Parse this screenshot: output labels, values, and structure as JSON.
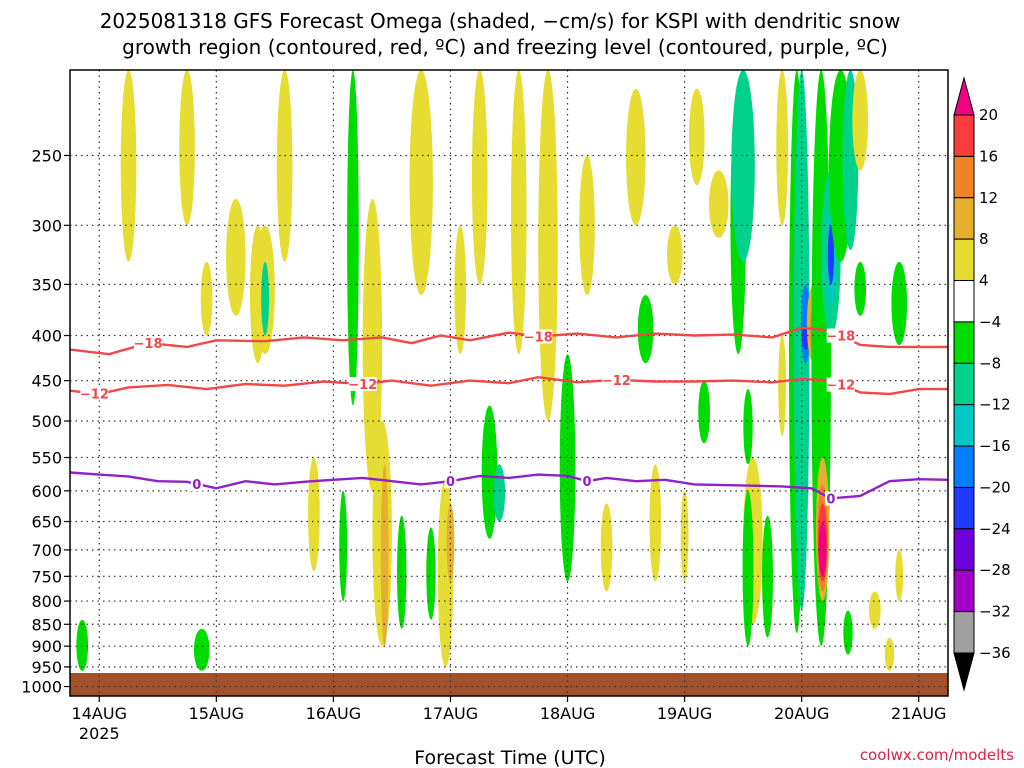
{
  "chart_data": {
    "type": "heatmap",
    "title_lines": [
      "2025081318 GFS Forecast Omega (shaded, −cm/s) for KSPI with dendritic snow",
      "growth region (contoured, red, ºC) and freezing level (contoured, purple, ºC)"
    ],
    "xlabel": "Forecast Time (UTC)",
    "credit": "coolwx.com/modelts",
    "y_axis": {
      "unit": "hPa",
      "scale": "log",
      "inverted": true,
      "range": [
        200,
        1025
      ],
      "ticks": [
        250,
        300,
        350,
        400,
        450,
        500,
        550,
        600,
        650,
        700,
        750,
        800,
        850,
        900,
        950,
        1000
      ]
    },
    "x_axis": {
      "range": [
        "2025-08-13T18:00Z",
        "2025-08-21T06:00Z"
      ],
      "ticks": [
        {
          "t": "2025-08-14T00:00Z",
          "label": "14AUG",
          "sublabel": "2025"
        },
        {
          "t": "2025-08-15T00:00Z",
          "label": "15AUG"
        },
        {
          "t": "2025-08-16T00:00Z",
          "label": "16AUG"
        },
        {
          "t": "2025-08-17T00:00Z",
          "label": "17AUG"
        },
        {
          "t": "2025-08-18T00:00Z",
          "label": "18AUG"
        },
        {
          "t": "2025-08-19T00:00Z",
          "label": "19AUG"
        },
        {
          "t": "2025-08-20T00:00Z",
          "label": "20AUG"
        },
        {
          "t": "2025-08-21T00:00Z",
          "label": "21AUG"
        }
      ]
    },
    "grid": true,
    "grid_style": "dotted",
    "colorbar": {
      "placement": "right",
      "bins": [
        {
          "lo": -40,
          "hi": -36,
          "color": "#000000",
          "end": "min"
        },
        {
          "lo": -36,
          "hi": -32,
          "color": "#a0a0a0"
        },
        {
          "lo": -32,
          "hi": -28,
          "color": "#a000c8"
        },
        {
          "lo": -28,
          "hi": -24,
          "color": "#6e00dc"
        },
        {
          "lo": -24,
          "hi": -20,
          "color": "#1e3cff"
        },
        {
          "lo": -20,
          "hi": -16,
          "color": "#0080ff"
        },
        {
          "lo": -16,
          "hi": -12,
          "color": "#00c8c8"
        },
        {
          "lo": -12,
          "hi": -8,
          "color": "#00d28c"
        },
        {
          "lo": -8,
          "hi": -4,
          "color": "#00dc00"
        },
        {
          "lo": -4,
          "hi": 4,
          "color": "#ffffff"
        },
        {
          "lo": 4,
          "hi": 8,
          "color": "#e6dc32"
        },
        {
          "lo": 8,
          "hi": 12,
          "color": "#e6af2d"
        },
        {
          "lo": 12,
          "hi": 16,
          "color": "#f08228"
        },
        {
          "lo": 16,
          "hi": 20,
          "color": "#fa3c3c"
        },
        {
          "lo": 20,
          "hi": 24,
          "color": "#f00082",
          "end": "max"
        }
      ],
      "tick_labels": [
        "20",
        "16",
        "12",
        "8",
        "4",
        "−4",
        "−8",
        "−12",
        "−16",
        "−20",
        "−24",
        "−28",
        "−32",
        "−36"
      ]
    },
    "omega_cells": [
      {
        "t": 12.0,
        "p0": 200,
        "p1": 330,
        "w": 2.0,
        "v": 6
      },
      {
        "t": 24.0,
        "p0": 200,
        "p1": 300,
        "w": 2.0,
        "v": 6
      },
      {
        "t": 28.0,
        "p0": 330,
        "p1": 400,
        "w": 1.5,
        "v": 6
      },
      {
        "t": 38.5,
        "p0": 300,
        "p1": 430,
        "w": 2.0,
        "v": 6
      },
      {
        "t": 40.0,
        "p0": 300,
        "p1": 420,
        "w": 2.5,
        "v": 6
      },
      {
        "t": 40.0,
        "p0": 330,
        "p1": 400,
        "w": 1.0,
        "v": -10
      },
      {
        "t": 44.0,
        "p0": 200,
        "p1": 330,
        "w": 2.0,
        "v": 6
      },
      {
        "t": 58.0,
        "p0": 200,
        "p1": 480,
        "w": 1.5,
        "v": -6
      },
      {
        "t": 62.0,
        "p0": 280,
        "p1": 600,
        "w": 2.5,
        "v": 6
      },
      {
        "t": 64.0,
        "p0": 500,
        "p1": 900,
        "w": 2.5,
        "v": 6
      },
      {
        "t": 64.5,
        "p0": 560,
        "p1": 900,
        "w": 1.0,
        "v": 10
      },
      {
        "t": 72.0,
        "p0": 200,
        "p1": 360,
        "w": 3.0,
        "v": 6
      },
      {
        "t": 77.0,
        "p0": 580,
        "p1": 950,
        "w": 2.0,
        "v": 6
      },
      {
        "t": 78.0,
        "p0": 620,
        "p1": 760,
        "w": 1.0,
        "v": 10
      },
      {
        "t": 80.0,
        "p0": 300,
        "p1": 420,
        "w": 1.5,
        "v": 6
      },
      {
        "t": 84.0,
        "p0": 200,
        "p1": 350,
        "w": 2.0,
        "v": 6
      },
      {
        "t": 86.0,
        "p0": 480,
        "p1": 680,
        "w": 2.0,
        "v": -6
      },
      {
        "t": 88.0,
        "p0": 560,
        "p1": 650,
        "w": 1.5,
        "v": -10
      },
      {
        "t": 92.0,
        "p0": 200,
        "p1": 420,
        "w": 2.0,
        "v": 6
      },
      {
        "t": 98.0,
        "p0": 200,
        "p1": 500,
        "w": 2.5,
        "v": 6
      },
      {
        "t": 102.0,
        "p0": 420,
        "p1": 760,
        "w": 2.0,
        "v": -6
      },
      {
        "t": 106.0,
        "p0": 250,
        "p1": 360,
        "w": 2.0,
        "v": 6
      },
      {
        "t": 116.0,
        "p0": 210,
        "p1": 300,
        "w": 2.5,
        "v": 6
      },
      {
        "t": 118.0,
        "p0": 360,
        "p1": 430,
        "w": 2.0,
        "v": -6
      },
      {
        "t": 124.0,
        "p0": 300,
        "p1": 350,
        "w": 2.0,
        "v": 6
      },
      {
        "t": 128.5,
        "p0": 210,
        "p1": 270,
        "w": 2.0,
        "v": 6
      },
      {
        "t": 130.0,
        "p0": 450,
        "p1": 530,
        "w": 1.5,
        "v": -6
      },
      {
        "t": 133.0,
        "p0": 260,
        "p1": 310,
        "w": 2.5,
        "v": 6
      },
      {
        "t": 137.0,
        "p0": 210,
        "p1": 420,
        "w": 2.0,
        "v": -6
      },
      {
        "t": 138.0,
        "p0": 200,
        "p1": 330,
        "w": 3.0,
        "v": -10
      },
      {
        "t": 140.0,
        "p0": 550,
        "p1": 850,
        "w": 2.5,
        "v": 6
      },
      {
        "t": 149.0,
        "p0": 200,
        "p1": 870,
        "w": 2.0,
        "v": -6
      },
      {
        "t": 150.0,
        "p0": 200,
        "p1": 820,
        "w": 2.0,
        "v": -10
      },
      {
        "t": 150.8,
        "p0": 350,
        "p1": 430,
        "w": 1.2,
        "v": -20
      },
      {
        "t": 150.8,
        "p0": 390,
        "p1": 415,
        "w": 1.0,
        "v": -24
      },
      {
        "t": 152.5,
        "p0": 350,
        "p1": 430,
        "w": 1.8,
        "v": 10
      },
      {
        "t": 152.5,
        "p0": 370,
        "p1": 420,
        "w": 1.0,
        "v": 14
      },
      {
        "t": 154.0,
        "p0": 200,
        "p1": 900,
        "w": 2.5,
        "v": -6
      },
      {
        "t": 154.3,
        "p0": 550,
        "p1": 800,
        "w": 1.7,
        "v": 10
      },
      {
        "t": 154.3,
        "p0": 590,
        "p1": 780,
        "w": 1.4,
        "v": 14
      },
      {
        "t": 154.3,
        "p0": 620,
        "p1": 760,
        "w": 1.2,
        "v": 18
      },
      {
        "t": 154.3,
        "p0": 650,
        "p1": 750,
        "w": 1.0,
        "v": 22
      },
      {
        "t": 156.0,
        "p0": 260,
        "p1": 400,
        "w": 2.5,
        "v": -10
      },
      {
        "t": 156.0,
        "p0": 290,
        "p1": 370,
        "w": 1.2,
        "v": -16
      },
      {
        "t": 156.0,
        "p0": 300,
        "p1": 350,
        "w": 0.8,
        "v": -22
      },
      {
        "t": 158.0,
        "p0": 200,
        "p1": 330,
        "w": 3.0,
        "v": -6
      },
      {
        "t": 160.0,
        "p0": 200,
        "p1": 320,
        "w": 2.0,
        "v": -10
      },
      {
        "t": 162.0,
        "p0": 200,
        "p1": 260,
        "w": 2.0,
        "v": 6
      },
      {
        "t": 170.0,
        "p0": 330,
        "p1": 410,
        "w": 2.0,
        "v": -6
      },
      {
        "t": 162.0,
        "p0": 330,
        "p1": 380,
        "w": 1.5,
        "v": -6
      },
      {
        "t": 2.5,
        "p0": 840,
        "p1": 960,
        "w": 1.5,
        "v": -6
      },
      {
        "t": 27.0,
        "p0": 860,
        "p1": 960,
        "w": 2.0,
        "v": -6
      },
      {
        "t": 34.0,
        "p0": 280,
        "p1": 380,
        "w": 2.5,
        "v": 6
      },
      {
        "t": 50.0,
        "p0": 550,
        "p1": 740,
        "w": 1.5,
        "v": 6
      },
      {
        "t": 56.0,
        "p0": 600,
        "p1": 800,
        "w": 1.0,
        "v": -6
      },
      {
        "t": 68.0,
        "p0": 640,
        "p1": 860,
        "w": 1.2,
        "v": -6
      },
      {
        "t": 74.0,
        "p0": 660,
        "p1": 840,
        "w": 1.2,
        "v": -6
      },
      {
        "t": 110.0,
        "p0": 620,
        "p1": 780,
        "w": 1.5,
        "v": 6
      },
      {
        "t": 120.0,
        "p0": 560,
        "p1": 760,
        "w": 1.5,
        "v": 6
      },
      {
        "t": 126.0,
        "p0": 600,
        "p1": 760,
        "w": 1.0,
        "v": 6
      },
      {
        "t": 139.0,
        "p0": 460,
        "p1": 560,
        "w": 1.2,
        "v": -6
      },
      {
        "t": 139.0,
        "p0": 600,
        "p1": 900,
        "w": 1.4,
        "v": -6
      },
      {
        "t": 143.0,
        "p0": 640,
        "p1": 880,
        "w": 1.4,
        "v": -6
      },
      {
        "t": 146.0,
        "p0": 400,
        "p1": 520,
        "w": 1.0,
        "v": 6
      },
      {
        "t": 146.0,
        "p0": 200,
        "p1": 300,
        "w": 1.5,
        "v": 6
      },
      {
        "t": 159.5,
        "p0": 820,
        "p1": 920,
        "w": 1.2,
        "v": -6
      },
      {
        "t": 168.0,
        "p0": 880,
        "p1": 960,
        "w": 1.2,
        "v": 6
      },
      {
        "t": 170.0,
        "p0": 700,
        "p1": 800,
        "w": 1.0,
        "v": 6
      },
      {
        "t": 165.0,
        "p0": 780,
        "p1": 860,
        "w": 1.5,
        "v": 6
      }
    ],
    "contours": [
      {
        "name": "-18",
        "variable": "temperature",
        "color": "#f04848",
        "label": "−18",
        "label_at": [
          16,
          96,
          158
        ],
        "points": [
          [
            -6,
            410
          ],
          [
            0,
            415
          ],
          [
            8,
            420
          ],
          [
            16,
            408
          ],
          [
            24,
            412
          ],
          [
            30,
            405
          ],
          [
            40,
            406
          ],
          [
            48,
            402
          ],
          [
            56,
            405
          ],
          [
            64,
            402
          ],
          [
            70,
            408
          ],
          [
            76,
            400
          ],
          [
            82,
            405
          ],
          [
            90,
            397
          ],
          [
            96,
            401
          ],
          [
            104,
            398
          ],
          [
            112,
            402
          ],
          [
            120,
            398
          ],
          [
            128,
            400
          ],
          [
            136,
            399
          ],
          [
            144,
            402
          ],
          [
            150,
            392
          ],
          [
            156,
            395
          ],
          [
            162,
            410
          ],
          [
            168,
            412
          ],
          [
            174,
            412
          ],
          [
            180,
            412
          ]
        ]
      },
      {
        "name": "-12",
        "variable": "temperature",
        "color": "#f04848",
        "label": "−12",
        "label_at": [
          5,
          60,
          112,
          158
        ],
        "points": [
          [
            -6,
            460
          ],
          [
            0,
            462
          ],
          [
            6,
            466
          ],
          [
            12,
            458
          ],
          [
            20,
            455
          ],
          [
            28,
            460
          ],
          [
            36,
            454
          ],
          [
            44,
            456
          ],
          [
            52,
            451
          ],
          [
            60,
            454
          ],
          [
            66,
            450
          ],
          [
            74,
            456
          ],
          [
            82,
            450
          ],
          [
            90,
            453
          ],
          [
            96,
            446
          ],
          [
            104,
            452
          ],
          [
            112,
            449
          ],
          [
            120,
            451
          ],
          [
            128,
            451
          ],
          [
            136,
            450
          ],
          [
            144,
            452
          ],
          [
            150,
            448
          ],
          [
            156,
            450
          ],
          [
            162,
            464
          ],
          [
            168,
            466
          ],
          [
            174,
            460
          ],
          [
            180,
            460
          ]
        ]
      },
      {
        "name": "0",
        "variable": "temperature",
        "color": "#9020c8",
        "label": "0",
        "label_at": [
          26,
          78,
          106,
          156
        ],
        "points": [
          [
            -6,
            578
          ],
          [
            0,
            572
          ],
          [
            6,
            575
          ],
          [
            12,
            578
          ],
          [
            18,
            585
          ],
          [
            24,
            586
          ],
          [
            30,
            596
          ],
          [
            36,
            585
          ],
          [
            42,
            590
          ],
          [
            48,
            586
          ],
          [
            54,
            583
          ],
          [
            60,
            580
          ],
          [
            66,
            585
          ],
          [
            72,
            590
          ],
          [
            78,
            585
          ],
          [
            84,
            577
          ],
          [
            90,
            580
          ],
          [
            96,
            575
          ],
          [
            102,
            577
          ],
          [
            106,
            585
          ],
          [
            110,
            580
          ],
          [
            116,
            585
          ],
          [
            122,
            583
          ],
          [
            128,
            590
          ],
          [
            134,
            591
          ],
          [
            140,
            592
          ],
          [
            146,
            593
          ],
          [
            152,
            596
          ],
          [
            156,
            612
          ],
          [
            162,
            608
          ],
          [
            168,
            585
          ],
          [
            174,
            582
          ],
          [
            180,
            583
          ]
        ]
      }
    ]
  }
}
